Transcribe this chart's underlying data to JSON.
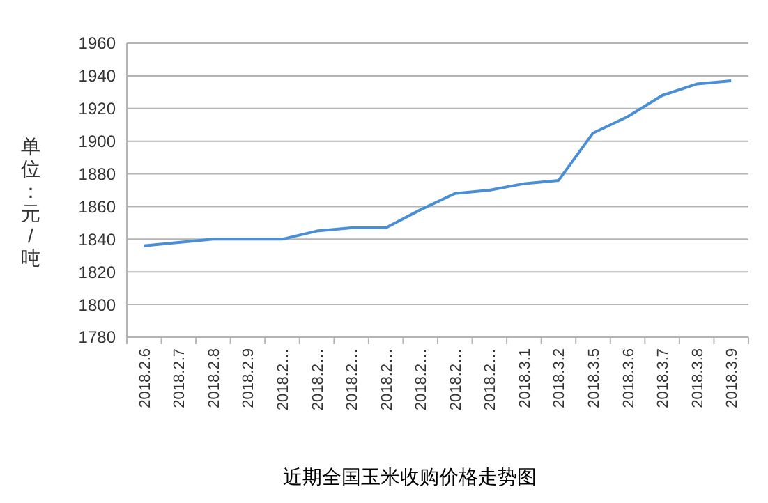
{
  "chart_data": {
    "type": "line",
    "title": "近期全国玉米收购价格走势图",
    "ylabel": "单位：元/吨",
    "categories": [
      "2018.2.6",
      "2018.2.7",
      "2018.2.8",
      "2018.2.9",
      "2018.2…",
      "2018.2…",
      "2018.2…",
      "2018.2…",
      "2018.2…",
      "2018.2…",
      "2018.2…",
      "2018.3.1",
      "2018.3.2",
      "2018.3.5",
      "2018.3.6",
      "2018.3.7",
      "2018.3.8",
      "2018.3.9"
    ],
    "series": [
      {
        "color": "#4a8fd6",
        "values": [
          1836,
          1838,
          1840,
          1840,
          1840,
          1845,
          1847,
          1847,
          1858,
          1868,
          1870,
          1874,
          1876,
          1905,
          1915,
          1928,
          1935,
          1937
        ]
      }
    ],
    "ylim": [
      1780,
      1960
    ],
    "yticks": [
      1780,
      1800,
      1820,
      1840,
      1860,
      1880,
      1900,
      1920,
      1940,
      1960
    ],
    "grid": "y",
    "marker": "none",
    "line_style": "solid"
  }
}
